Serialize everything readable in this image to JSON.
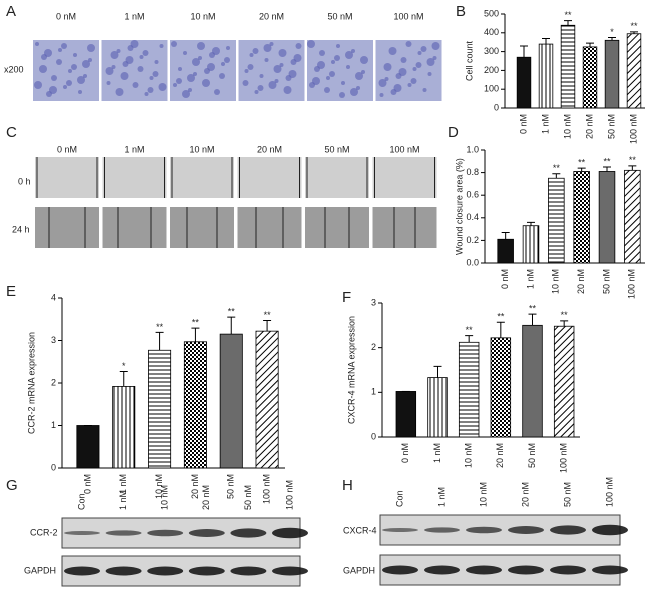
{
  "panel_labels": [
    "A",
    "B",
    "C",
    "D",
    "E",
    "F",
    "G",
    "H"
  ],
  "invasion": {
    "columns": [
      "0 nM",
      "1 nM",
      "10 nM",
      "20 nM",
      "50 nM",
      "100 nM"
    ],
    "magnification": "x200"
  },
  "wound": {
    "columns": [
      "0 nM",
      "1 nM",
      "10 nM",
      "20 nM",
      "50 nM",
      "100 nM"
    ],
    "rows": [
      "0 h",
      "24 h"
    ]
  },
  "blot_g": {
    "lanes": [
      "Con",
      "1 nM",
      "10 nM",
      "20 nM",
      "50 nM",
      "100 nM"
    ],
    "rows": [
      "CCR-2",
      "GAPDH"
    ]
  },
  "blot_h": {
    "lanes": [
      "Con",
      "1 nM",
      "10 nM",
      "20 nM",
      "50 nM",
      "100 nM"
    ],
    "rows": [
      "CXCR-4",
      "GAPDH"
    ]
  },
  "chart_data": [
    {
      "type": "bar",
      "y_label": "Cell count",
      "categories": [
        "0 nM",
        "1 nM",
        "10 nM",
        "20 nM",
        "50 nM",
        "100 nM"
      ],
      "values": [
        270,
        340,
        440,
        325,
        360,
        395
      ],
      "errors": [
        60,
        30,
        25,
        20,
        15,
        10
      ],
      "significance": [
        null,
        null,
        "**",
        null,
        "*",
        "**"
      ],
      "fills": [
        "black",
        "vertical",
        "horizontal",
        "checker",
        "gray",
        "diagonal"
      ],
      "ylim": [
        0,
        500
      ],
      "yticks": [
        0,
        100,
        200,
        300,
        400,
        500
      ]
    },
    {
      "type": "bar",
      "y_label": "Wound closure area (%)",
      "categories": [
        "0 nM",
        "1 nM",
        "10 nM",
        "20 nM",
        "50 nM",
        "100 nM"
      ],
      "values": [
        0.21,
        0.33,
        0.75,
        0.81,
        0.81,
        0.82
      ],
      "errors": [
        0.06,
        0.03,
        0.04,
        0.03,
        0.04,
        0.04
      ],
      "significance": [
        null,
        null,
        "**",
        "**",
        "**",
        "**"
      ],
      "fills": [
        "black",
        "vertical",
        "horizontal",
        "checker",
        "gray",
        "diagonal"
      ],
      "ylim": [
        0,
        1
      ],
      "yticks": [
        {
          "value": 0,
          "label": "0.0"
        },
        0.2,
        0.4,
        0.6,
        0.8,
        {
          "value": 1,
          "label": "1.0"
        }
      ]
    },
    {
      "type": "bar",
      "y_label": "CCR-2 mRNA expression",
      "categories": [
        "0 nM",
        "1 nM",
        "10 nM",
        "20 nM",
        "50 nM",
        "100 nM"
      ],
      "values": [
        1.0,
        1.92,
        2.77,
        2.97,
        3.15,
        3.22
      ],
      "errors": [
        0,
        0.35,
        0.42,
        0.32,
        0.4,
        0.25
      ],
      "significance": [
        null,
        "*",
        "**",
        "**",
        "**",
        "**"
      ],
      "fills": [
        "black",
        "vertical",
        "horizontal",
        "checker",
        "gray",
        "diagonal"
      ],
      "ylim": [
        0,
        4
      ],
      "yticks": [
        0,
        1,
        2,
        3,
        4
      ]
    },
    {
      "type": "bar",
      "y_label": "CXCR-4 mRNA expression",
      "categories": [
        "0 nM",
        "1 nM",
        "10 nM",
        "20 nM",
        "50 nM",
        "100 nM"
      ],
      "values": [
        1.02,
        1.33,
        2.12,
        2.22,
        2.5,
        2.48
      ],
      "errors": [
        0,
        0.25,
        0.15,
        0.35,
        0.25,
        0.12
      ],
      "significance": [
        null,
        null,
        "**",
        "**",
        "**",
        "**"
      ],
      "fills": [
        "black",
        "vertical",
        "horizontal",
        "checker",
        "gray",
        "diagonal"
      ],
      "ylim": [
        0,
        3
      ],
      "yticks": [
        0,
        1,
        2,
        3
      ]
    }
  ]
}
